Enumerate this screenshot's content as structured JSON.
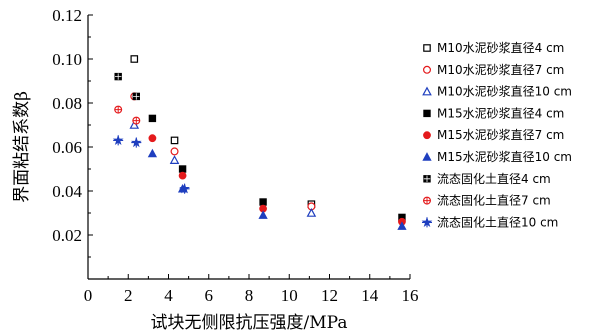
{
  "chart_data": {
    "type": "scatter",
    "xlabel": "试块无侧限抗压强度/MPa",
    "ylabel": "界面粘结系数β",
    "xlim": [
      0,
      16
    ],
    "ylim": [
      0.0,
      0.12
    ],
    "x_ticks": [
      "0",
      "2",
      "4",
      "6",
      "8",
      "10",
      "12",
      "14",
      "16"
    ],
    "y_ticks": [
      "0.02",
      "0.04",
      "0.06",
      "0.08",
      "0.10",
      "0.12"
    ],
    "grid": false,
    "legend_position": "right",
    "series": [
      {
        "name": "M10水泥砂浆直径4 cm",
        "marker": "square-open",
        "color": "#000000",
        "points": [
          [
            2.3,
            0.1
          ],
          [
            4.3,
            0.063
          ],
          [
            11.1,
            0.034
          ]
        ]
      },
      {
        "name": "M10水泥砂浆直径7 cm",
        "marker": "circle-open",
        "color": "#e41a1c",
        "points": [
          [
            2.3,
            0.083
          ],
          [
            4.3,
            0.058
          ],
          [
            11.1,
            0.033
          ]
        ]
      },
      {
        "name": "M10水泥砂浆直径10 cm",
        "marker": "triangle-open",
        "color": "#1f3fbf",
        "points": [
          [
            2.3,
            0.07
          ],
          [
            4.3,
            0.054
          ],
          [
            11.1,
            0.03
          ]
        ]
      },
      {
        "name": "M15水泥砂浆直径4 cm",
        "marker": "square-filled",
        "color": "#000000",
        "points": [
          [
            3.2,
            0.073
          ],
          [
            4.7,
            0.05
          ],
          [
            8.7,
            0.035
          ],
          [
            15.6,
            0.028
          ]
        ]
      },
      {
        "name": "M15水泥砂浆直径7 cm",
        "marker": "circle-filled",
        "color": "#e41a1c",
        "points": [
          [
            3.2,
            0.064
          ],
          [
            4.7,
            0.047
          ],
          [
            8.7,
            0.032
          ],
          [
            15.6,
            0.026
          ]
        ]
      },
      {
        "name": "M15水泥砂浆直径10 cm",
        "marker": "triangle-filled",
        "color": "#1f3fbf",
        "points": [
          [
            3.2,
            0.057
          ],
          [
            4.7,
            0.041
          ],
          [
            8.7,
            0.029
          ],
          [
            15.6,
            0.024
          ]
        ]
      },
      {
        "name": "流态固化土直径4 cm",
        "marker": "square-crossed",
        "color": "#000000",
        "points": [
          [
            1.5,
            0.092
          ],
          [
            2.4,
            0.083
          ]
        ]
      },
      {
        "name": "流态固化土直径7 cm",
        "marker": "circle-crossed",
        "color": "#e41a1c",
        "points": [
          [
            1.5,
            0.077
          ],
          [
            2.4,
            0.072
          ]
        ]
      },
      {
        "name": "流态固化土直径10 cm",
        "marker": "star-crossed",
        "color": "#1f3fbf",
        "points": [
          [
            1.5,
            0.063
          ],
          [
            2.4,
            0.062
          ],
          [
            4.8,
            0.041
          ]
        ]
      }
    ]
  }
}
